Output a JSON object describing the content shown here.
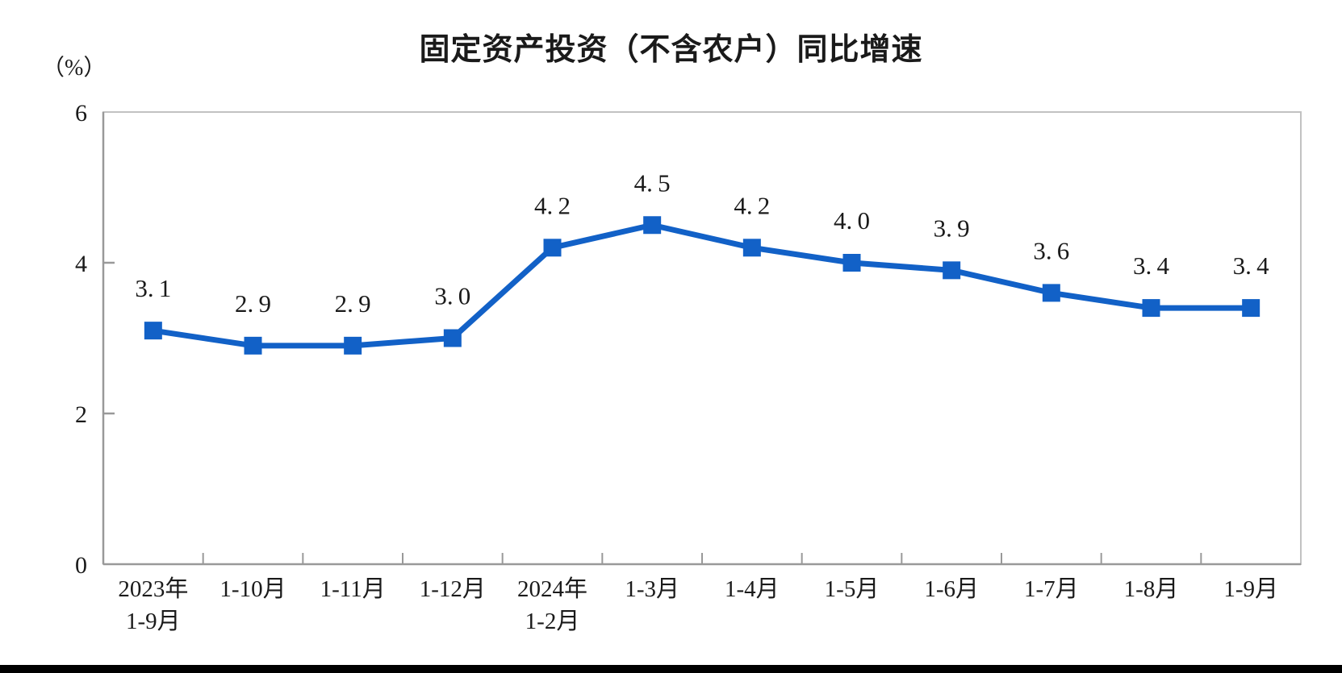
{
  "page": {
    "background_color": "#ffffff",
    "bottom_bar_color": "#000000"
  },
  "chart_data": {
    "type": "line",
    "title": "固定资产投资（不含农户）同比增速",
    "unit_label": "（%）",
    "categories": [
      "2023年\n1-9月",
      "1-10月",
      "1-11月",
      "1-12月",
      "2024年\n1-2月",
      "1-3月",
      "1-4月",
      "1-5月",
      "1-6月",
      "1-7月",
      "1-8月",
      "1-9月"
    ],
    "series": [
      {
        "name": "同比增速",
        "values": [
          3.1,
          2.9,
          2.9,
          3.0,
          4.2,
          4.5,
          4.2,
          4.0,
          3.9,
          3.6,
          3.4,
          3.4
        ]
      }
    ],
    "data_labels": [
      "3.1",
      "2.9",
      "2.9",
      "3.0",
      "4.2",
      "4.5",
      "4.2",
      "4.0",
      "3.9",
      "3.6",
      "3.4",
      "3.4"
    ],
    "ylim": [
      0,
      6
    ],
    "yticks": [
      0,
      2,
      4,
      6
    ],
    "grid": false,
    "legend_position": "none",
    "line_color": "#1261C7",
    "marker": "square",
    "axis_color": "#999999",
    "label_color": "#1a1a1a"
  }
}
